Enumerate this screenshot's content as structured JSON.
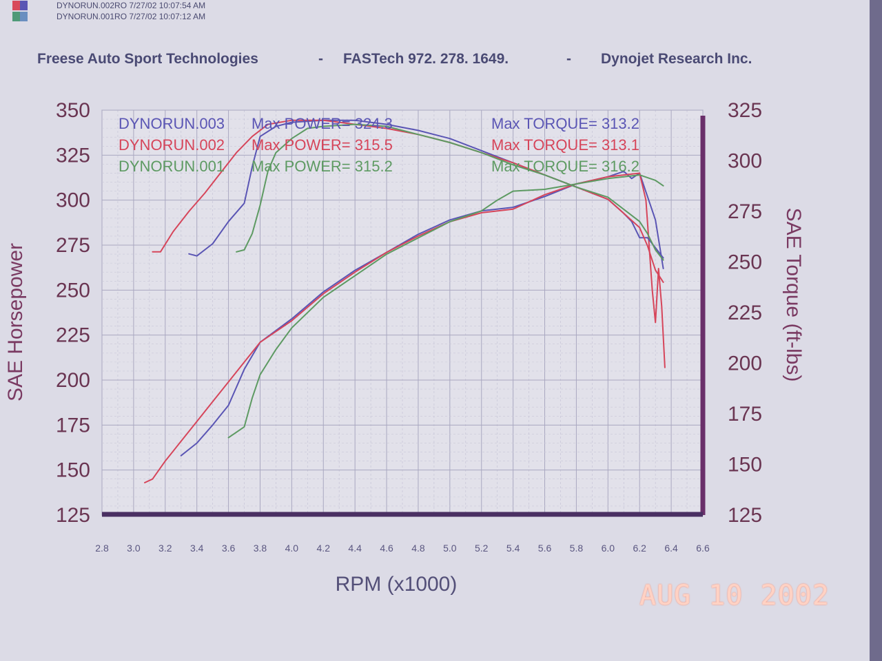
{
  "runs": [
    {
      "label": "DYNORUN.002RO  7/27/02 10:07:54 AM",
      "color": "#d8495a"
    },
    {
      "label": "DYNORUN.001RO  7/27/02 10:07:12 AM",
      "color": "#4f9a78"
    }
  ],
  "header": {
    "company": "Freese Auto Sport Technologies",
    "sep1": "-",
    "phone": "FASTech  972. 278. 1649.",
    "sep2": "-",
    "vendor": "Dynojet Research Inc."
  },
  "date_stamp": "AUG 10 2002",
  "chart_data": {
    "type": "line",
    "xlabel": "RPM (x1000)",
    "ylabel": "SAE Horsepower",
    "ylabel_right": "SAE Torque (ft-lbs)",
    "xlim": [
      2.8,
      6.6
    ],
    "x_ticks": [
      "2.8",
      "3.0",
      "3.2",
      "3.4",
      "3.6",
      "3.8",
      "4.0",
      "4.2",
      "4.4",
      "4.6",
      "4.8",
      "5.0",
      "5.2",
      "5.4",
      "5.6",
      "5.8",
      "6.0",
      "6.2",
      "6.4",
      "6.6"
    ],
    "ylim_left": [
      125,
      350
    ],
    "ylim_right": [
      125,
      325
    ],
    "y_ticks_left": [
      "125",
      "150",
      "175",
      "200",
      "225",
      "250",
      "275",
      "300",
      "325",
      "350"
    ],
    "y_ticks_right": [
      "125",
      "150",
      "175",
      "200",
      "225",
      "250",
      "275",
      "300",
      "325"
    ],
    "grid": true,
    "legend": [
      {
        "run": "DYNORUN.003",
        "power": "Max POWER= 324.3",
        "torque": "Max TORQUE= 313.2",
        "color": "#5a55b4"
      },
      {
        "run": "DYNORUN.002",
        "power": "Max POWER= 315.5",
        "torque": "Max TORQUE= 313.1",
        "color": "#d6455a"
      },
      {
        "run": "DYNORUN.001",
        "power": "Max POWER= 315.2",
        "torque": "Max TORQUE= 316.2",
        "color": "#5d9a62"
      }
    ],
    "series": [
      {
        "name": "DYNORUN.003",
        "quantity": "power",
        "axis": "left",
        "color": "#5a55b4",
        "points": [
          [
            3.3,
            158
          ],
          [
            3.4,
            165
          ],
          [
            3.5,
            175
          ],
          [
            3.6,
            186
          ],
          [
            3.7,
            206
          ],
          [
            3.8,
            221
          ],
          [
            4.0,
            234
          ],
          [
            4.2,
            249
          ],
          [
            4.4,
            261
          ],
          [
            4.6,
            271
          ],
          [
            4.8,
            281
          ],
          [
            5.0,
            289
          ],
          [
            5.2,
            294
          ],
          [
            5.4,
            296
          ],
          [
            5.6,
            302
          ],
          [
            5.8,
            309
          ],
          [
            6.0,
            313
          ],
          [
            6.1,
            316
          ],
          [
            6.15,
            312
          ],
          [
            6.2,
            315
          ],
          [
            6.25,
            302
          ],
          [
            6.3,
            289
          ],
          [
            6.35,
            262
          ]
        ]
      },
      {
        "name": "DYNORUN.002",
        "quantity": "power",
        "axis": "left",
        "color": "#d6455a",
        "points": [
          [
            3.07,
            143
          ],
          [
            3.12,
            145
          ],
          [
            3.2,
            155
          ],
          [
            3.3,
            166
          ],
          [
            3.4,
            177
          ],
          [
            3.5,
            188
          ],
          [
            3.6,
            199
          ],
          [
            3.7,
            210
          ],
          [
            3.8,
            221
          ],
          [
            4.0,
            233
          ],
          [
            4.2,
            248
          ],
          [
            4.4,
            260
          ],
          [
            4.6,
            271
          ],
          [
            4.8,
            280
          ],
          [
            5.0,
            288
          ],
          [
            5.2,
            293
          ],
          [
            5.4,
            295
          ],
          [
            5.6,
            303
          ],
          [
            5.8,
            309
          ],
          [
            6.0,
            313
          ],
          [
            6.1,
            314
          ],
          [
            6.2,
            315
          ],
          [
            6.24,
            300
          ],
          [
            6.28,
            250
          ],
          [
            6.3,
            232
          ],
          [
            6.32,
            262
          ],
          [
            6.34,
            241
          ],
          [
            6.36,
            207
          ]
        ]
      },
      {
        "name": "DYNORUN.001",
        "quantity": "power",
        "axis": "left",
        "color": "#5d9a62",
        "points": [
          [
            3.6,
            168
          ],
          [
            3.7,
            174
          ],
          [
            3.75,
            190
          ],
          [
            3.8,
            203
          ],
          [
            3.9,
            217
          ],
          [
            4.0,
            229
          ],
          [
            4.2,
            246
          ],
          [
            4.4,
            258
          ],
          [
            4.6,
            270
          ],
          [
            4.8,
            279
          ],
          [
            5.0,
            288
          ],
          [
            5.2,
            294
          ],
          [
            5.3,
            300
          ],
          [
            5.4,
            305
          ],
          [
            5.6,
            306
          ],
          [
            5.8,
            309
          ],
          [
            6.0,
            312
          ],
          [
            6.1,
            313
          ],
          [
            6.2,
            314
          ],
          [
            6.3,
            311
          ],
          [
            6.35,
            308
          ]
        ]
      },
      {
        "name": "DYNORUN.003",
        "quantity": "torque",
        "axis": "right",
        "color": "#5a55b4",
        "points": [
          [
            3.35,
            254
          ],
          [
            3.4,
            253
          ],
          [
            3.5,
            259
          ],
          [
            3.6,
            270
          ],
          [
            3.7,
            279
          ],
          [
            3.75,
            297
          ],
          [
            3.8,
            312
          ],
          [
            3.9,
            317
          ],
          [
            4.0,
            319
          ],
          [
            4.2,
            320
          ],
          [
            4.4,
            320
          ],
          [
            4.6,
            318
          ],
          [
            4.8,
            315
          ],
          [
            5.0,
            311
          ],
          [
            5.2,
            305
          ],
          [
            5.4,
            299
          ],
          [
            5.6,
            293
          ],
          [
            5.8,
            287
          ],
          [
            6.0,
            281
          ],
          [
            6.1,
            274
          ],
          [
            6.15,
            270
          ],
          [
            6.2,
            262
          ],
          [
            6.25,
            262
          ],
          [
            6.3,
            257
          ],
          [
            6.35,
            252
          ]
        ]
      },
      {
        "name": "DYNORUN.002",
        "quantity": "torque",
        "axis": "right",
        "color": "#d6455a",
        "points": [
          [
            3.12,
            255
          ],
          [
            3.17,
            255
          ],
          [
            3.25,
            265
          ],
          [
            3.35,
            275
          ],
          [
            3.45,
            284
          ],
          [
            3.55,
            294
          ],
          [
            3.65,
            304
          ],
          [
            3.75,
            312
          ],
          [
            3.85,
            318
          ],
          [
            4.0,
            320
          ],
          [
            4.2,
            320
          ],
          [
            4.4,
            318
          ],
          [
            4.6,
            316
          ],
          [
            4.8,
            313
          ],
          [
            5.0,
            309
          ],
          [
            5.2,
            304
          ],
          [
            5.4,
            299
          ],
          [
            5.6,
            293
          ],
          [
            5.8,
            287
          ],
          [
            6.0,
            281
          ],
          [
            6.1,
            274
          ],
          [
            6.2,
            267
          ],
          [
            6.25,
            258
          ],
          [
            6.3,
            246
          ],
          [
            6.35,
            240
          ]
        ]
      },
      {
        "name": "DYNORUN.001",
        "quantity": "torque",
        "axis": "right",
        "color": "#5d9a62",
        "points": [
          [
            3.65,
            255
          ],
          [
            3.7,
            256
          ],
          [
            3.75,
            264
          ],
          [
            3.8,
            278
          ],
          [
            3.85,
            295
          ],
          [
            3.9,
            304
          ],
          [
            4.0,
            311
          ],
          [
            4.1,
            316
          ],
          [
            4.2,
            317
          ],
          [
            4.4,
            318
          ],
          [
            4.6,
            317
          ],
          [
            4.8,
            313
          ],
          [
            5.0,
            309
          ],
          [
            5.2,
            304
          ],
          [
            5.4,
            298
          ],
          [
            5.6,
            293
          ],
          [
            5.8,
            287
          ],
          [
            6.0,
            282
          ],
          [
            6.1,
            276
          ],
          [
            6.2,
            270
          ],
          [
            6.25,
            264
          ],
          [
            6.3,
            256
          ],
          [
            6.35,
            251
          ]
        ]
      }
    ]
  }
}
